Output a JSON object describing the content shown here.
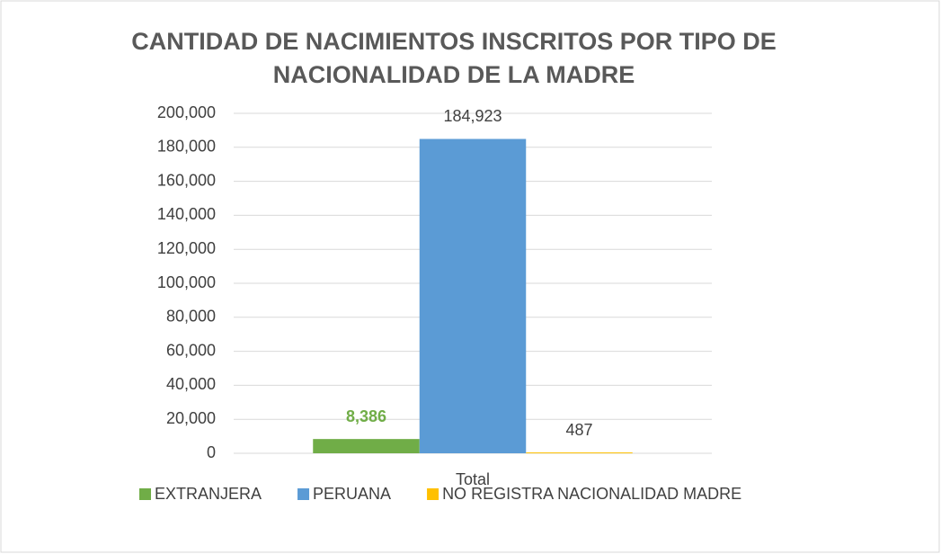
{
  "chart_data": {
    "type": "bar",
    "title": "CANTIDAD DE NACIMIENTOS INSCRITOS POR TIPO DE NACIONALIDAD DE LA MADRE",
    "categories": [
      "Total"
    ],
    "series": [
      {
        "name": "EXTRANJERA",
        "color": "#70ad47",
        "values": [
          8386
        ],
        "value_labels": [
          "8,386"
        ]
      },
      {
        "name": "PERUANA",
        "color": "#5b9bd5",
        "values": [
          184923
        ],
        "value_labels": [
          "184,923"
        ]
      },
      {
        "name": "NO REGISTRA NACIONALIDAD MADRE",
        "color": "#ffc000",
        "values": [
          487
        ],
        "value_labels": [
          "487"
        ]
      }
    ],
    "ylim": [
      0,
      200000
    ],
    "yticks": [
      0,
      {
        "value": 20000,
        "label": "20,000"
      },
      {
        "value": 40000,
        "label": "40,000"
      },
      {
        "value": 60000,
        "label": "60,000"
      },
      {
        "value": 80000,
        "label": "80,000"
      },
      {
        "value": 100000,
        "label": "100,000"
      },
      {
        "value": 120000,
        "label": "120,000"
      },
      {
        "value": 140000,
        "label": "140,000"
      },
      {
        "value": 160000,
        "label": "160,000"
      },
      {
        "value": 180000,
        "label": "180,000"
      },
      {
        "value": 200000,
        "label": "200,000"
      }
    ],
    "grid": true,
    "legend": "bottom"
  }
}
